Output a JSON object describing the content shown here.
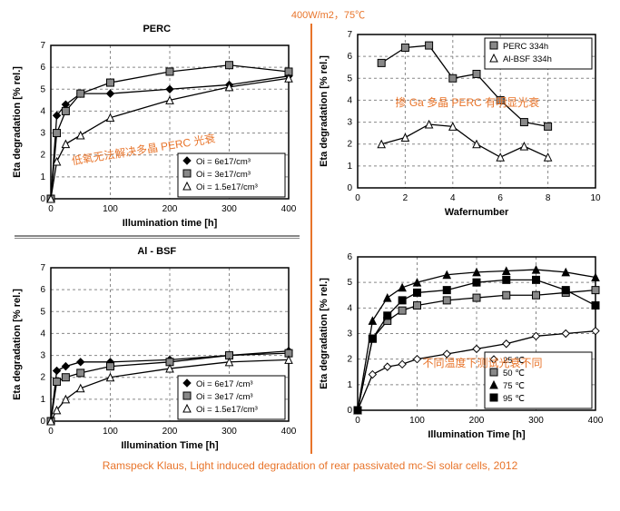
{
  "conditions": "400W/m2，75℃",
  "citation": "Ramspeck Klaus, Light induced degradation of rear passivated mc-Si solar cells, 2012",
  "colors": {
    "accent": "#e8742a",
    "axis": "#000000",
    "grid": "#888888",
    "bg": "#ffffff",
    "series_fill": [
      "#000000",
      "#888888",
      "#ffffff"
    ],
    "series_stroke": [
      "#000000",
      "#000000",
      "#000000"
    ]
  },
  "annotations": {
    "tl": "低氧无法解决多晶 PERC 光衰",
    "tr": "掺 Ga 多晶 PERC 有明显光衰",
    "br": "不同温度下测试光衰不同"
  },
  "charts": {
    "tl": {
      "title": "PERC",
      "xlabel": "Illumination time [h]",
      "ylabel": "Eta degradation [% rel.]",
      "xlim": [
        0,
        400
      ],
      "xtick_step": 100,
      "ylim": [
        0,
        7
      ],
      "ytick_step": 1,
      "legend_pos": "br",
      "series": [
        {
          "label": "Oi = 6e17/cm³",
          "marker": "diamond",
          "fill": "#000000",
          "x": [
            0,
            10,
            25,
            50,
            100,
            200,
            300,
            400
          ],
          "y": [
            0,
            3.8,
            4.3,
            4.8,
            4.8,
            5.0,
            5.2,
            5.6
          ]
        },
        {
          "label": "Oi = 3e17/cm³",
          "marker": "square",
          "fill": "#888888",
          "x": [
            0,
            10,
            25,
            50,
            100,
            200,
            300,
            400
          ],
          "y": [
            0,
            3.0,
            4.0,
            4.8,
            5.3,
            5.8,
            6.1,
            5.8
          ]
        },
        {
          "label": "Oi = 1.5e17/cm³",
          "marker": "triangle",
          "fill": "#ffffff",
          "x": [
            0,
            10,
            25,
            50,
            100,
            200,
            300,
            400
          ],
          "y": [
            0,
            1.7,
            2.5,
            2.9,
            3.7,
            4.5,
            5.1,
            5.5
          ]
        }
      ]
    },
    "bl": {
      "title": "Al - BSF",
      "xlabel": "Illumination Time [h]",
      "ylabel": "Eta degradation [% rel.]",
      "xlim": [
        0,
        400
      ],
      "xtick_step": 100,
      "ylim": [
        0,
        7
      ],
      "ytick_step": 1,
      "legend_pos": "br",
      "series": [
        {
          "label": "Oi = 6e17 /cm³",
          "marker": "diamond",
          "fill": "#000000",
          "x": [
            0,
            10,
            25,
            50,
            100,
            200,
            300,
            400
          ],
          "y": [
            0,
            2.3,
            2.5,
            2.7,
            2.7,
            2.8,
            3.0,
            3.2
          ]
        },
        {
          "label": "Oi = 3e17 /cm³",
          "marker": "square",
          "fill": "#888888",
          "x": [
            0,
            10,
            25,
            50,
            100,
            200,
            300,
            400
          ],
          "y": [
            0,
            1.8,
            2.0,
            2.2,
            2.5,
            2.7,
            3.0,
            3.1
          ]
        },
        {
          "label": "Oi = 1.5e17/cm³",
          "marker": "triangle",
          "fill": "#ffffff",
          "x": [
            0,
            10,
            25,
            50,
            100,
            200,
            300,
            400
          ],
          "y": [
            0,
            0.5,
            1.0,
            1.5,
            2.0,
            2.4,
            2.7,
            2.8
          ]
        }
      ]
    },
    "tr": {
      "title": "",
      "xlabel": "Wafernumber",
      "ylabel": "Eta degradation [% rel.]",
      "xlim": [
        0,
        10
      ],
      "xtick_step": 2,
      "ylim": [
        0,
        7
      ],
      "ytick_step": 1,
      "legend_pos": "tr",
      "series": [
        {
          "label": "PERC 334h",
          "marker": "square",
          "fill": "#888888",
          "x": [
            1,
            2,
            3,
            4,
            5,
            6,
            7,
            8
          ],
          "y": [
            5.7,
            6.4,
            6.5,
            5.0,
            5.2,
            4.0,
            3.0,
            2.8
          ]
        },
        {
          "label": "Al-BSF 334h",
          "marker": "triangle",
          "fill": "#ffffff",
          "x": [
            1,
            2,
            3,
            4,
            5,
            6,
            7,
            8
          ],
          "y": [
            2.0,
            2.3,
            2.9,
            2.8,
            2.0,
            1.4,
            1.9,
            1.4
          ]
        }
      ]
    },
    "br": {
      "title": "",
      "xlabel": "Illumination Time [h]",
      "ylabel": "Eta degradation [% rel.]",
      "xlim": [
        0,
        400
      ],
      "xtick_step": 100,
      "ylim": [
        0,
        6
      ],
      "ytick_step": 1,
      "legend_pos": "br",
      "series": [
        {
          "label": "25 ℃",
          "marker": "diamond",
          "fill": "#ffffff",
          "x": [
            0,
            25,
            50,
            75,
            100,
            150,
            200,
            250,
            300,
            350,
            400
          ],
          "y": [
            0,
            1.4,
            1.7,
            1.8,
            2.0,
            2.2,
            2.4,
            2.6,
            2.9,
            3.0,
            3.1
          ]
        },
        {
          "label": "50 ℃",
          "marker": "square",
          "fill": "#888888",
          "x": [
            0,
            25,
            50,
            75,
            100,
            150,
            200,
            250,
            300,
            350,
            400
          ],
          "y": [
            0,
            2.8,
            3.5,
            3.9,
            4.1,
            4.3,
            4.4,
            4.5,
            4.5,
            4.6,
            4.7
          ]
        },
        {
          "label": "75 ℃",
          "marker": "triangle",
          "fill": "#000000",
          "x": [
            0,
            25,
            50,
            75,
            100,
            150,
            200,
            250,
            300,
            350,
            400
          ],
          "y": [
            0,
            3.5,
            4.4,
            4.8,
            5.0,
            5.3,
            5.4,
            5.45,
            5.5,
            5.4,
            5.2
          ]
        },
        {
          "label": "95 ℃",
          "marker": "square",
          "fill": "#000000",
          "x": [
            0,
            25,
            50,
            75,
            100,
            150,
            200,
            250,
            300,
            350,
            400
          ],
          "y": [
            0,
            2.8,
            3.7,
            4.3,
            4.6,
            4.7,
            5.0,
            5.1,
            5.1,
            4.7,
            4.1
          ]
        }
      ]
    }
  }
}
